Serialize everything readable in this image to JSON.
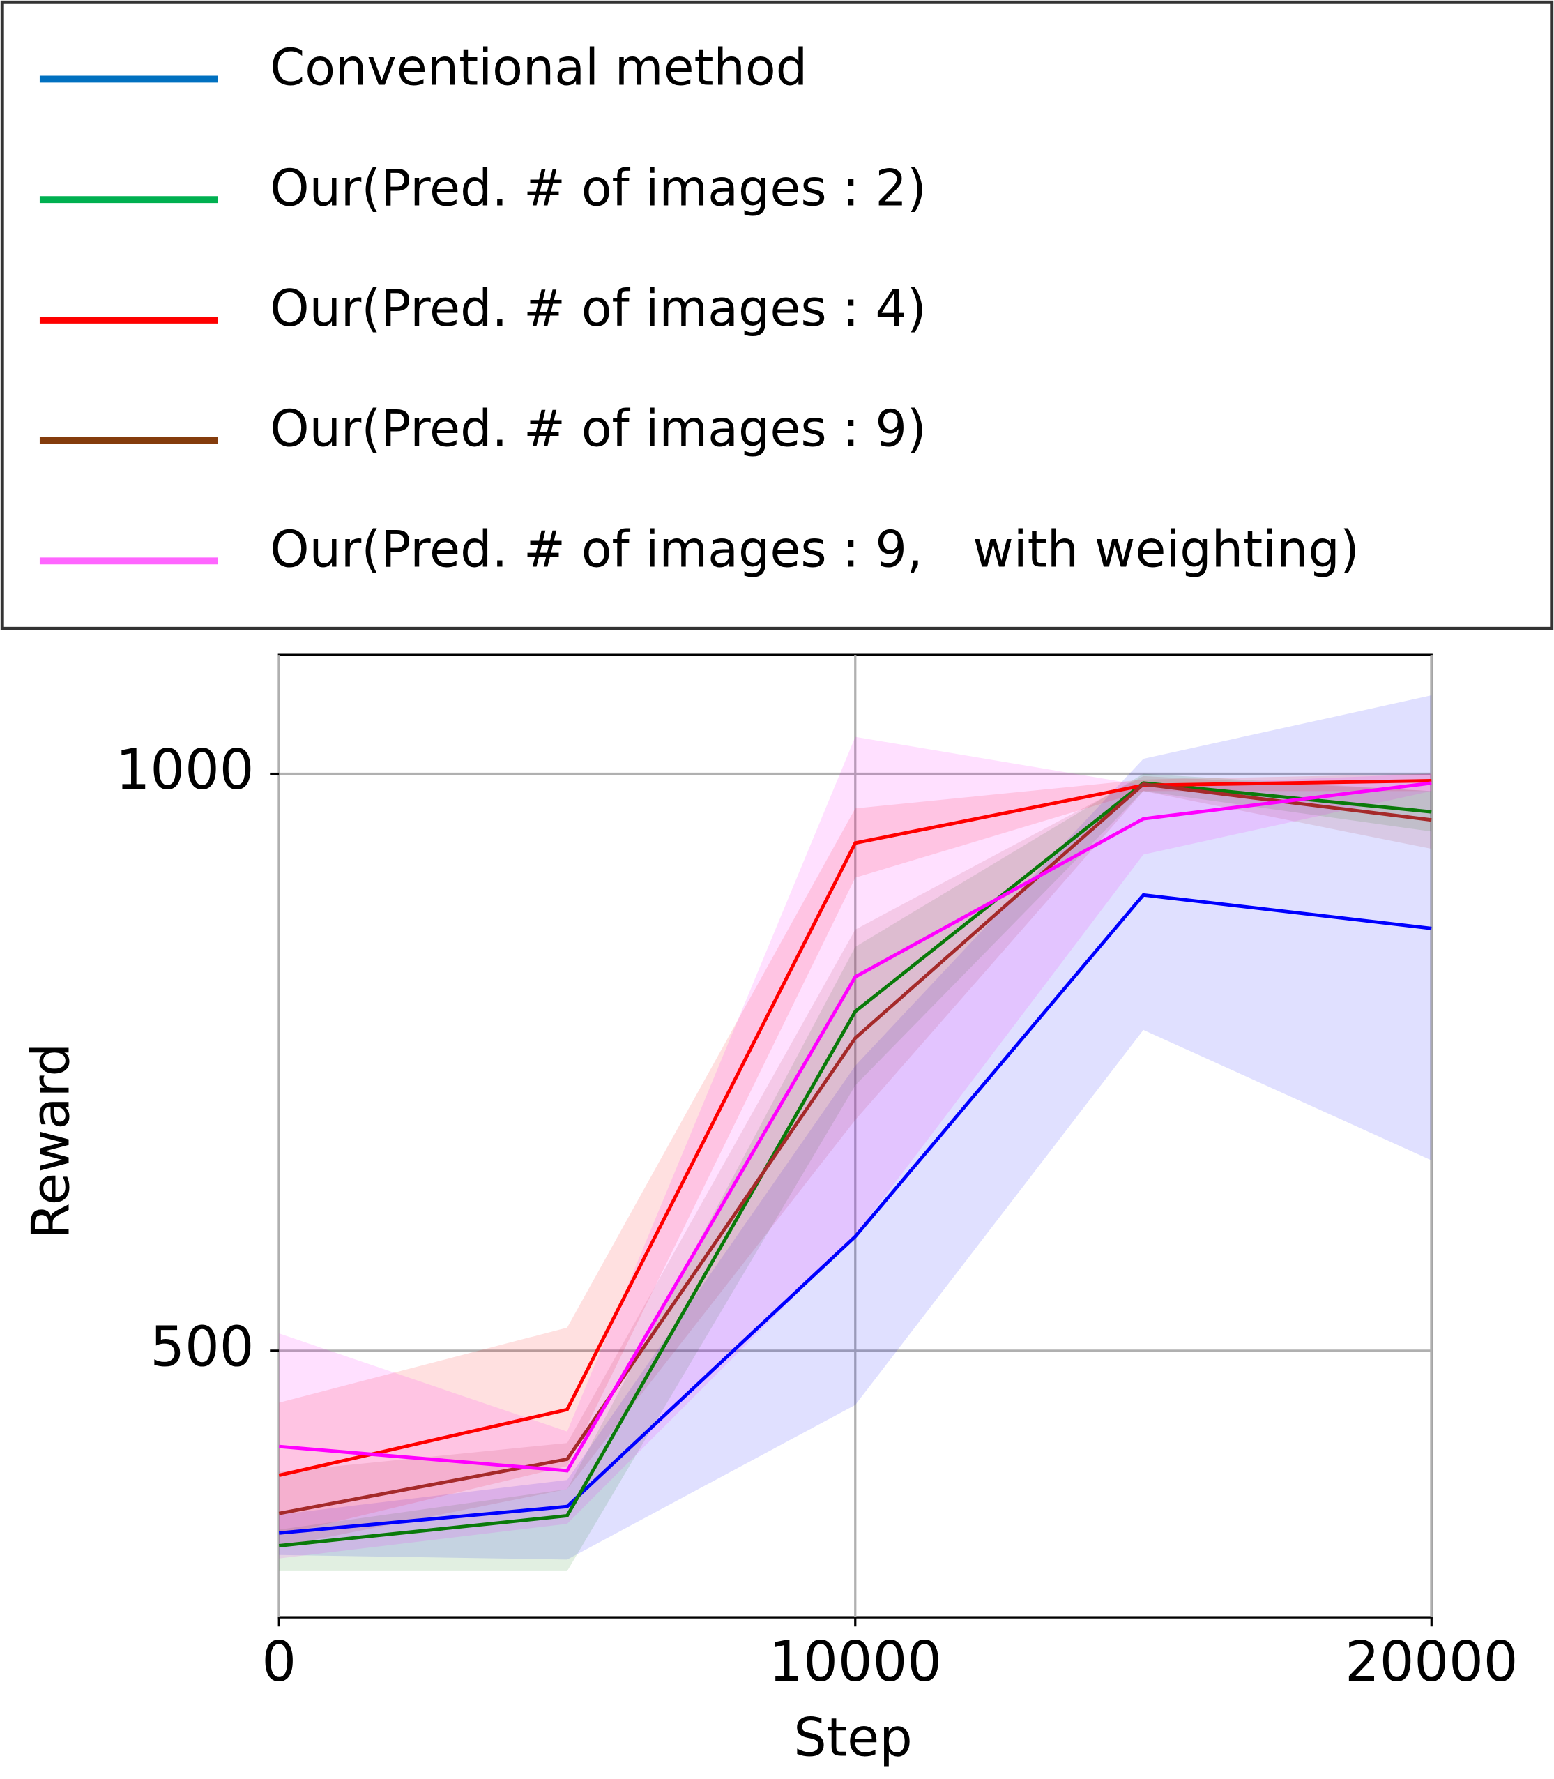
{
  "chart_data": {
    "type": "line",
    "x_label": "Step",
    "y_label": "Reward",
    "x": [
      0,
      5000,
      10000,
      15000,
      20000
    ],
    "xlim": [
      0,
      20000
    ],
    "xticks": [
      0,
      10000,
      20000
    ],
    "ylim": [
      269,
      1103
    ],
    "yticks": [
      500,
      1000
    ],
    "grid": true,
    "legend": "top",
    "series": [
      {
        "name": "Conventional method",
        "color": "#0000ff",
        "legend_color": "#0070c0",
        "values": [
          342,
          365,
          599,
          895,
          866
        ],
        "lower": [
          323,
          319,
          453,
          778,
          665
        ],
        "upper": [
          358,
          388,
          747,
          1013,
          1068
        ]
      },
      {
        "name": "Our(Pred. # of images : 2)",
        "color": "#0a7a0a",
        "legend_color": "#00b050",
        "values": [
          331,
          357,
          794,
          992,
          967
        ],
        "lower": [
          309,
          309,
          730,
          985,
          950
        ],
        "upper": [
          345,
          380,
          850,
          1000,
          985
        ]
      },
      {
        "name": "Our(Pred. # of images : 4)",
        "color": "#ff0000",
        "legend_color": "#ff0000",
        "values": [
          392,
          449,
          940,
          990,
          994
        ],
        "lower": [
          340,
          400,
          910,
          985,
          985
        ],
        "upper": [
          455,
          520,
          970,
          995,
          1000
        ]
      },
      {
        "name": "Our(Pred. # of images : 9)",
        "color": "#a52a2a",
        "legend_color": "#843c0c",
        "values": [
          359,
          406,
          771,
          991,
          960
        ],
        "lower": [
          330,
          380,
          700,
          985,
          935
        ],
        "upper": [
          395,
          420,
          865,
          998,
          985
        ]
      },
      {
        "name": "Our(Pred. # of images : 9,　with weighting)",
        "color": "#ff00ff",
        "legend_color": "#ff66ff",
        "values": [
          417,
          396,
          824,
          961,
          992
        ],
        "lower": [
          320,
          350,
          600,
          930,
          985
        ],
        "upper": [
          515,
          430,
          1032,
          990,
          1000
        ]
      }
    ]
  }
}
